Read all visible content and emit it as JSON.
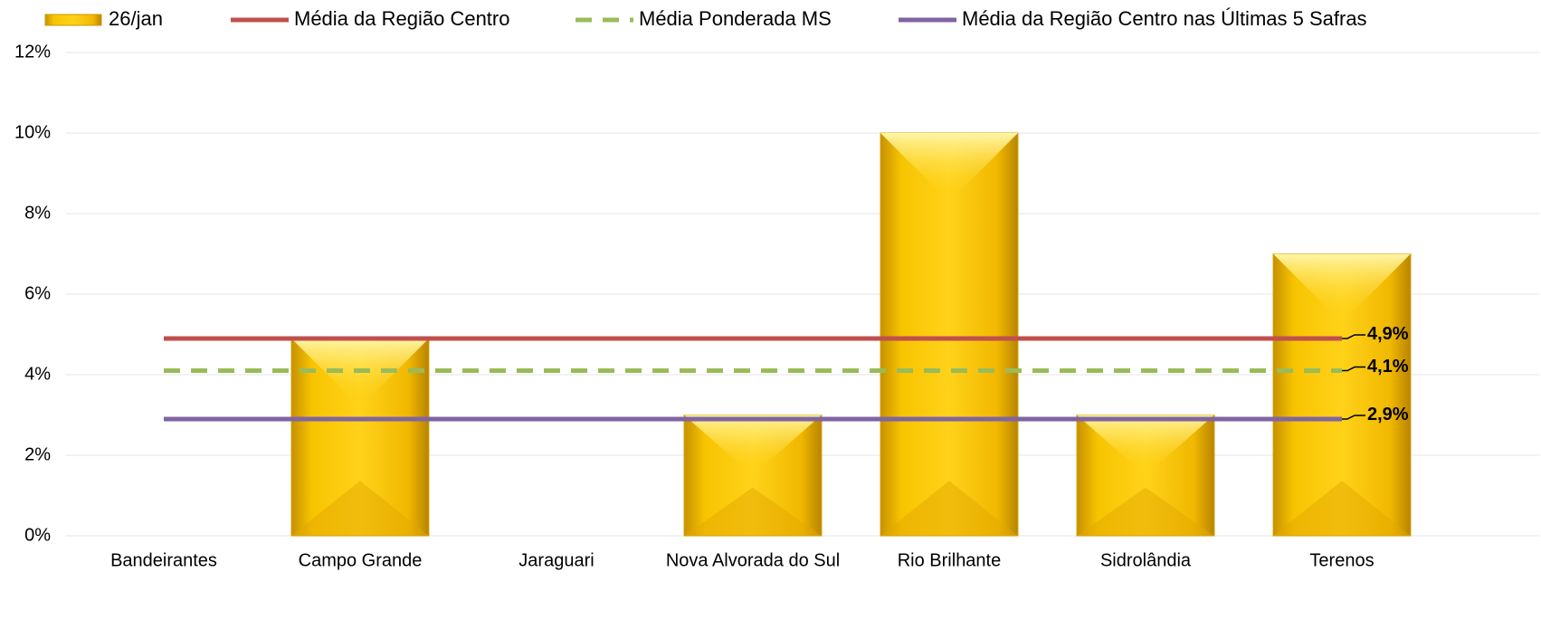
{
  "chart_data": {
    "type": "bar",
    "categories": [
      "Bandeirantes",
      "Campo Grande",
      "Jaraguari",
      "Nova Alvorada do Sul",
      "Rio Brilhante",
      "Sidrolândia",
      "Terenos"
    ],
    "series": [
      {
        "name": "26/jan",
        "color": "#f5b800",
        "type": "bar",
        "values": [
          0,
          4.9,
          0,
          3.0,
          10.0,
          3.0,
          7.0
        ]
      },
      {
        "name": "Média da Região Centro",
        "color": "#c0504d",
        "type": "line",
        "values": [
          4.9,
          4.9,
          4.9,
          4.9,
          4.9,
          4.9,
          4.9
        ],
        "value_labels": [
          null,
          null,
          null,
          null,
          null,
          null,
          "4,9%"
        ]
      },
      {
        "name": "Média Ponderada MS",
        "color": "#9bbb59",
        "type": "line",
        "dashed": true,
        "values": [
          4.1,
          4.1,
          4.1,
          4.1,
          4.1,
          4.1,
          4.1
        ],
        "value_labels": [
          null,
          null,
          null,
          null,
          null,
          null,
          "4,1%"
        ]
      },
      {
        "name": "Média da Região Centro nas Últimas 5 Safras",
        "color": "#8064a2",
        "type": "line",
        "values": [
          2.9,
          2.9,
          2.9,
          2.9,
          2.9,
          2.9,
          2.9
        ],
        "value_labels": [
          null,
          null,
          null,
          null,
          null,
          null,
          "2,9%"
        ]
      }
    ],
    "ylim": [
      0,
      12
    ],
    "yticks": [
      {
        "value": 0,
        "label": "0%"
      },
      {
        "value": 2,
        "label": "2%"
      },
      {
        "value": 4,
        "label": "4%"
      },
      {
        "value": 6,
        "label": "6%"
      },
      {
        "value": 8,
        "label": "8%"
      },
      {
        "value": 10,
        "label": "10%"
      },
      {
        "value": 12,
        "label": "12%"
      }
    ],
    "grid": true
  }
}
